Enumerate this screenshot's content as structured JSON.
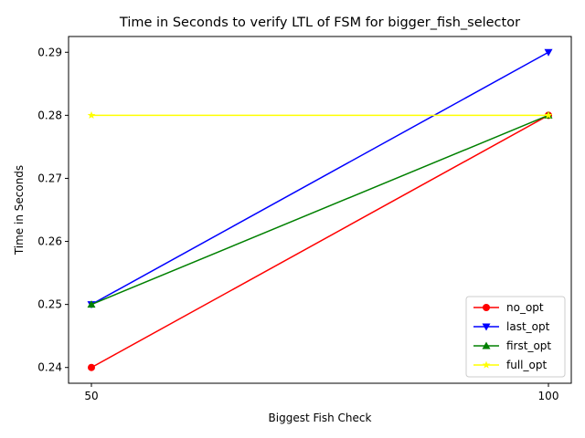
{
  "chart_data": {
    "type": "line",
    "title": "Time in Seconds to verify LTL of FSM for bigger_fish_selector",
    "xlabel": "Biggest Fish Check",
    "ylabel": "Time in Seconds",
    "x": [
      50,
      100
    ],
    "xticks": [
      "50",
      "100"
    ],
    "xlim": [
      47.5,
      102.5
    ],
    "ylim": [
      0.2375,
      0.2925
    ],
    "yticks": [
      "0.24",
      "0.25",
      "0.26",
      "0.27",
      "0.28",
      "0.29"
    ],
    "grid": false,
    "legend_position": "lower right",
    "series": [
      {
        "name": "no_opt",
        "values": [
          0.24,
          0.28
        ],
        "color": "#ff0000",
        "marker": "circle"
      },
      {
        "name": "last_opt",
        "values": [
          0.25,
          0.29
        ],
        "color": "#0000ff",
        "marker": "triangle-down"
      },
      {
        "name": "first_opt",
        "values": [
          0.25,
          0.28
        ],
        "color": "#008000",
        "marker": "triangle-up"
      },
      {
        "name": "full_opt",
        "values": [
          0.28,
          0.28
        ],
        "color": "#ffff00",
        "marker": "star"
      }
    ]
  }
}
